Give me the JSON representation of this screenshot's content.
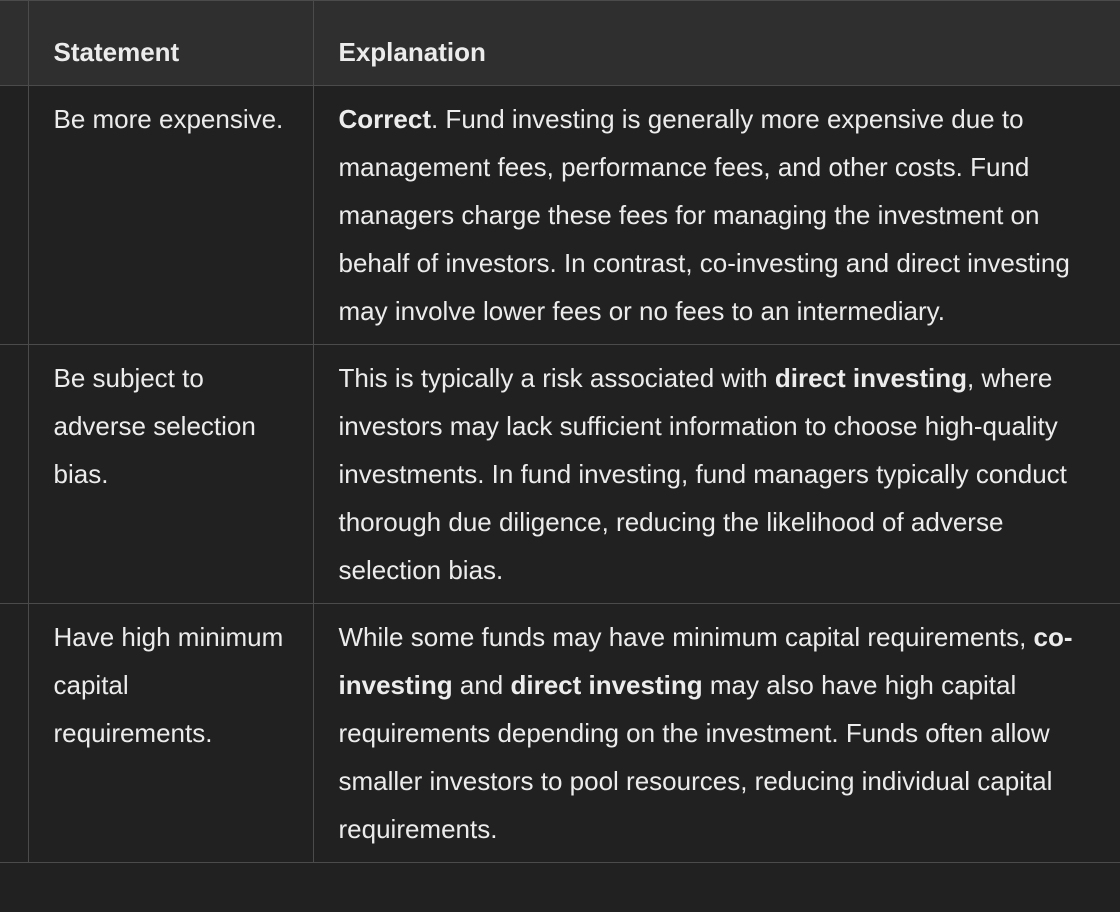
{
  "table": {
    "header": [
      "Statement",
      "Explanation"
    ],
    "rows": [
      {
        "statement": "Be more expensive.",
        "explanation": [
          {
            "text": "Correct",
            "bold": true
          },
          {
            "text": ". Fund investing is generally more expensive due to management fees, performance fees, and other costs. Fund managers charge these fees for managing the investment on behalf of investors. In contrast, co-investing and direct investing may involve lower fees or no fees to an intermediary.",
            "bold": false
          }
        ]
      },
      {
        "statement": "Be subject to adverse selection bias.",
        "explanation": [
          {
            "text": "This is typically a risk associated with ",
            "bold": false
          },
          {
            "text": "direct investing",
            "bold": true
          },
          {
            "text": ", where investors may lack sufficient information to choose high-quality investments. In fund investing, fund managers typically conduct thorough due diligence, reducing the likelihood of adverse selection bias.",
            "bold": false
          }
        ]
      },
      {
        "statement": "Have high minimum capital requirements.",
        "explanation": [
          {
            "text": "While some funds may have minimum capital requirements, ",
            "bold": false
          },
          {
            "text": "co-investing",
            "bold": true
          },
          {
            "text": " and ",
            "bold": false
          },
          {
            "text": "direct investing",
            "bold": true
          },
          {
            "text": " may also have high capital requirements depending on the investment. Funds often allow smaller investors to pool resources, reducing individual capital requirements.",
            "bold": false
          }
        ]
      }
    ]
  }
}
